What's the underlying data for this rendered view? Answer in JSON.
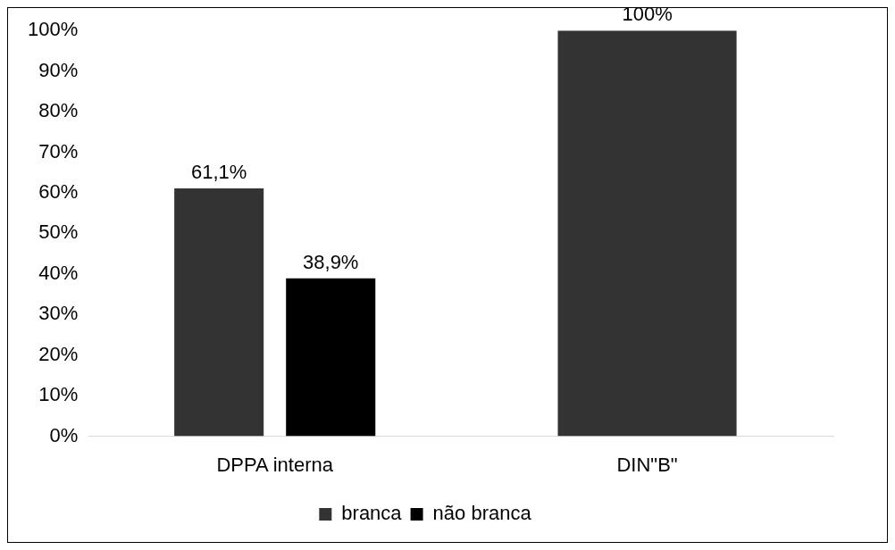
{
  "chart_data": {
    "type": "bar",
    "categories": [
      "DPPA interna",
      "DIN\"B\""
    ],
    "series": [
      {
        "name": "branca",
        "color": "#333333",
        "values": [
          61.1,
          100
        ],
        "value_labels": [
          "61,1%",
          "100%"
        ]
      },
      {
        "name": "não branca",
        "color": "#000000",
        "values": [
          38.9,
          null
        ],
        "value_labels": [
          "38,9%",
          null
        ]
      }
    ],
    "ylim": [
      0,
      100
    ],
    "yticks": [
      {
        "value": 0,
        "label": "0%"
      },
      {
        "value": 10,
        "label": "10%"
      },
      {
        "value": 20,
        "label": "20%"
      },
      {
        "value": 30,
        "label": "30%"
      },
      {
        "value": 40,
        "label": "40%"
      },
      {
        "value": 50,
        "label": "50%"
      },
      {
        "value": 60,
        "label": "60%"
      },
      {
        "value": 70,
        "label": "70%"
      },
      {
        "value": 80,
        "label": "80%"
      },
      {
        "value": 90,
        "label": "90%"
      },
      {
        "value": 100,
        "label": "100%"
      }
    ],
    "grid": false,
    "legend": "bottom"
  }
}
